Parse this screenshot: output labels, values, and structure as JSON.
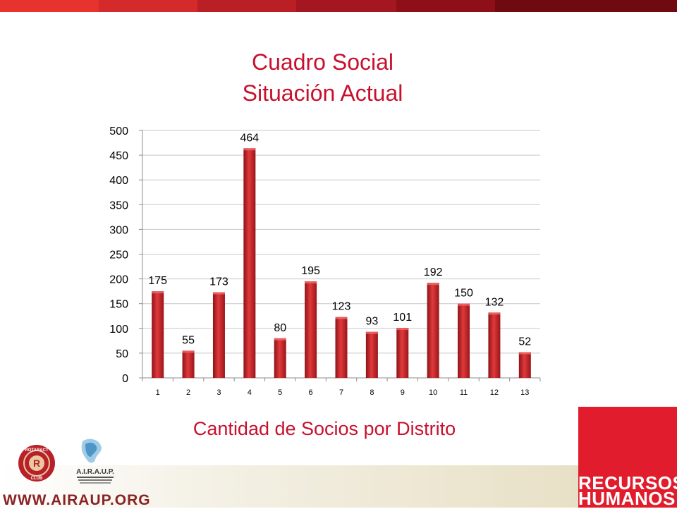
{
  "header": {
    "title_line1": "Cuadro Social",
    "title_line2": "Situación Actual"
  },
  "chart_data": {
    "type": "bar",
    "categories": [
      "1",
      "2",
      "3",
      "4",
      "5",
      "6",
      "7",
      "8",
      "9",
      "10",
      "11",
      "12",
      "13"
    ],
    "values": [
      175,
      55,
      173,
      464,
      80,
      195,
      123,
      93,
      101,
      192,
      150,
      132,
      52
    ],
    "xlabel": "Cantidad de Socios por Distrito",
    "ylabel": "",
    "ylim": [
      0,
      500
    ],
    "yticks": [
      0,
      50,
      100,
      150,
      200,
      250,
      300,
      350,
      400,
      450,
      500
    ],
    "grid": true,
    "legend": "none",
    "bar_color": "#c9252b"
  },
  "footer": {
    "website": "WWW.AIRAUP.ORG",
    "brand_line1": "RECURSOS",
    "brand_line2": "HUMANOS",
    "logo_left_top": "ROTARACT",
    "logo_left_bottom": "CLUB",
    "logo_right_text": "A.I.R.A.U.P."
  },
  "colors": {
    "accent": "#c8102e",
    "brand_box": "#e11c2c",
    "bar": "#c9252b"
  }
}
